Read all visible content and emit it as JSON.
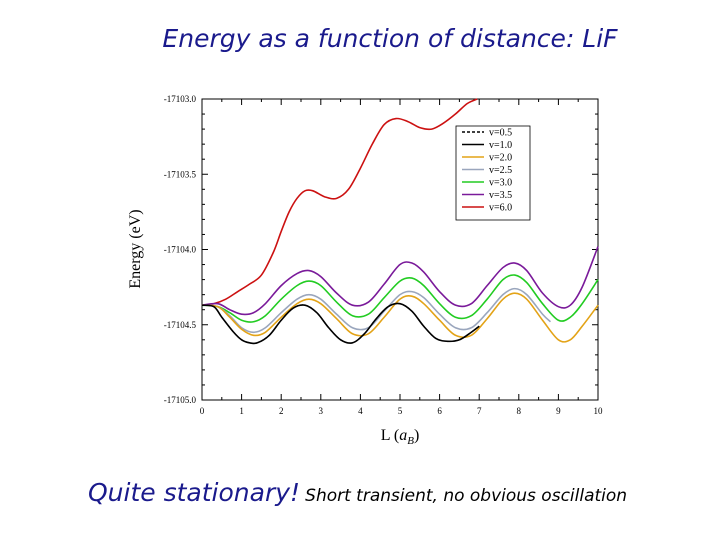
{
  "slide": {
    "title": "Energy as a function of distance: LiF",
    "caption_main": "Quite stationary!",
    "caption_sub": "Short transient, no obvious oscillation"
  },
  "chart_data": {
    "type": "line",
    "title": "",
    "xlabel": "L (a_B)",
    "ylabel": "Energy (eV)",
    "xlim": [
      0,
      10
    ],
    "ylim": [
      -17105.0,
      -17103.0
    ],
    "xticks": [
      "0",
      "1",
      "2",
      "3",
      "4",
      "5",
      "6",
      "7",
      "8",
      "9",
      "10"
    ],
    "yticks": [
      "-17103.0",
      "-17103.5",
      "-17104.0",
      "-17104.5",
      "-17105.0"
    ],
    "grid": false,
    "legend_position": "top-right",
    "series": [
      {
        "name": "v=0.5",
        "color": "#000000",
        "dash": true,
        "x": [
          0,
          0.3,
          0.5,
          0.8,
          1.0,
          1.2,
          1.4,
          1.7,
          2.0,
          2.3,
          2.6,
          2.9,
          3.2,
          3.5,
          3.8,
          4.1,
          4.4,
          4.7,
          5.0,
          5.3,
          5.6,
          5.9,
          6.2,
          6.5,
          6.8,
          7.0
        ],
        "y": [
          -17104.37,
          -17104.38,
          -17104.45,
          -17104.55,
          -17104.6,
          -17104.62,
          -17104.62,
          -17104.57,
          -17104.47,
          -17104.39,
          -17104.37,
          -17104.42,
          -17104.52,
          -17104.6,
          -17104.62,
          -17104.56,
          -17104.46,
          -17104.38,
          -17104.36,
          -17104.41,
          -17104.51,
          -17104.59,
          -17104.61,
          -17104.6,
          -17104.55,
          -17104.51
        ]
      },
      {
        "name": "v=1.0",
        "color": "#000000",
        "dash": false,
        "x": [
          0,
          0.3,
          0.5,
          0.8,
          1.0,
          1.2,
          1.4,
          1.7,
          2.0,
          2.3,
          2.6,
          2.9,
          3.2,
          3.5,
          3.8,
          4.1,
          4.4,
          4.7,
          5.0,
          5.3,
          5.6,
          5.9,
          6.2,
          6.5,
          6.8,
          7.0
        ],
        "y": [
          -17104.37,
          -17104.38,
          -17104.45,
          -17104.55,
          -17104.6,
          -17104.62,
          -17104.62,
          -17104.57,
          -17104.47,
          -17104.39,
          -17104.37,
          -17104.42,
          -17104.52,
          -17104.6,
          -17104.62,
          -17104.56,
          -17104.46,
          -17104.38,
          -17104.36,
          -17104.41,
          -17104.51,
          -17104.59,
          -17104.61,
          -17104.6,
          -17104.55,
          -17104.51
        ]
      },
      {
        "name": "v=2.0",
        "color": "#e3a317",
        "x": [
          0,
          0.4,
          0.7,
          1.0,
          1.3,
          1.6,
          2.0,
          2.4,
          2.7,
          3.0,
          3.4,
          3.8,
          4.2,
          4.6,
          5.0,
          5.3,
          5.6,
          6.0,
          6.4,
          6.8,
          7.2,
          7.6,
          7.9,
          8.2,
          8.6,
          9.0,
          9.3,
          9.6,
          10.0
        ],
        "y": [
          -17104.37,
          -17104.38,
          -17104.45,
          -17104.53,
          -17104.57,
          -17104.55,
          -17104.45,
          -17104.36,
          -17104.33,
          -17104.36,
          -17104.46,
          -17104.56,
          -17104.56,
          -17104.45,
          -17104.33,
          -17104.31,
          -17104.36,
          -17104.47,
          -17104.57,
          -17104.57,
          -17104.46,
          -17104.33,
          -17104.29,
          -17104.33,
          -17104.47,
          -17104.6,
          -17104.6,
          -17104.51,
          -17104.37
        ]
      },
      {
        "name": "v=2.5",
        "color": "#9aa6bd",
        "x": [
          0,
          0.4,
          0.7,
          1.0,
          1.3,
          1.6,
          2.0,
          2.4,
          2.7,
          3.0,
          3.4,
          3.8,
          4.2,
          4.6,
          5.0,
          5.3,
          5.6,
          6.0,
          6.4,
          6.8,
          7.2,
          7.6,
          7.9,
          8.2,
          8.6,
          8.8
        ],
        "y": [
          -17104.37,
          -17104.38,
          -17104.44,
          -17104.52,
          -17104.55,
          -17104.52,
          -17104.42,
          -17104.33,
          -17104.3,
          -17104.33,
          -17104.43,
          -17104.52,
          -17104.52,
          -17104.41,
          -17104.3,
          -17104.28,
          -17104.32,
          -17104.43,
          -17104.52,
          -17104.52,
          -17104.42,
          -17104.3,
          -17104.26,
          -17104.3,
          -17104.43,
          -17104.48
        ]
      },
      {
        "name": "v=3.0",
        "color": "#22cc22",
        "x": [
          0,
          0.4,
          0.7,
          1.0,
          1.3,
          1.6,
          2.0,
          2.4,
          2.7,
          3.0,
          3.4,
          3.8,
          4.2,
          4.6,
          5.0,
          5.3,
          5.6,
          6.0,
          6.4,
          6.8,
          7.2,
          7.6,
          7.9,
          8.2,
          8.6,
          9.0,
          9.3,
          9.6,
          10.0
        ],
        "y": [
          -17104.37,
          -17104.38,
          -17104.42,
          -17104.47,
          -17104.48,
          -17104.44,
          -17104.33,
          -17104.24,
          -17104.21,
          -17104.24,
          -17104.35,
          -17104.44,
          -17104.43,
          -17104.32,
          -17104.21,
          -17104.19,
          -17104.24,
          -17104.36,
          -17104.45,
          -17104.44,
          -17104.33,
          -17104.2,
          -17104.17,
          -17104.22,
          -17104.36,
          -17104.47,
          -17104.45,
          -17104.36,
          -17104.2
        ]
      },
      {
        "name": "v=3.5",
        "color": "#7a1a9a",
        "x": [
          0,
          0.4,
          0.7,
          1.0,
          1.3,
          1.6,
          2.0,
          2.4,
          2.7,
          3.0,
          3.4,
          3.8,
          4.2,
          4.6,
          5.0,
          5.3,
          5.6,
          6.0,
          6.4,
          6.8,
          7.2,
          7.6,
          7.9,
          8.2,
          8.6,
          9.0,
          9.3,
          9.6,
          10.0
        ],
        "y": [
          -17104.37,
          -17104.36,
          -17104.4,
          -17104.43,
          -17104.42,
          -17104.36,
          -17104.24,
          -17104.16,
          -17104.14,
          -17104.18,
          -17104.29,
          -17104.37,
          -17104.35,
          -17104.23,
          -17104.1,
          -17104.09,
          -17104.15,
          -17104.28,
          -17104.37,
          -17104.36,
          -17104.24,
          -17104.12,
          -17104.09,
          -17104.14,
          -17104.29,
          -17104.38,
          -17104.37,
          -17104.25,
          -17103.98
        ]
      },
      {
        "name": "v=6.0",
        "color": "#cc1111",
        "x": [
          0,
          0.3,
          0.6,
          0.9,
          1.2,
          1.5,
          1.8,
          2.0,
          2.2,
          2.4,
          2.6,
          2.8,
          3.1,
          3.4,
          3.7,
          4.0,
          4.3,
          4.6,
          4.9,
          5.2,
          5.5,
          5.8,
          6.1,
          6.4,
          6.7,
          6.95
        ],
        "y": [
          -17104.37,
          -17104.36,
          -17104.33,
          -17104.28,
          -17104.23,
          -17104.17,
          -17104.02,
          -17103.88,
          -17103.75,
          -17103.66,
          -17103.61,
          -17103.61,
          -17103.65,
          -17103.66,
          -17103.6,
          -17103.46,
          -17103.3,
          -17103.17,
          -17103.13,
          -17103.15,
          -17103.19,
          -17103.2,
          -17103.16,
          -17103.1,
          -17103.03,
          -17103.0
        ]
      }
    ]
  }
}
